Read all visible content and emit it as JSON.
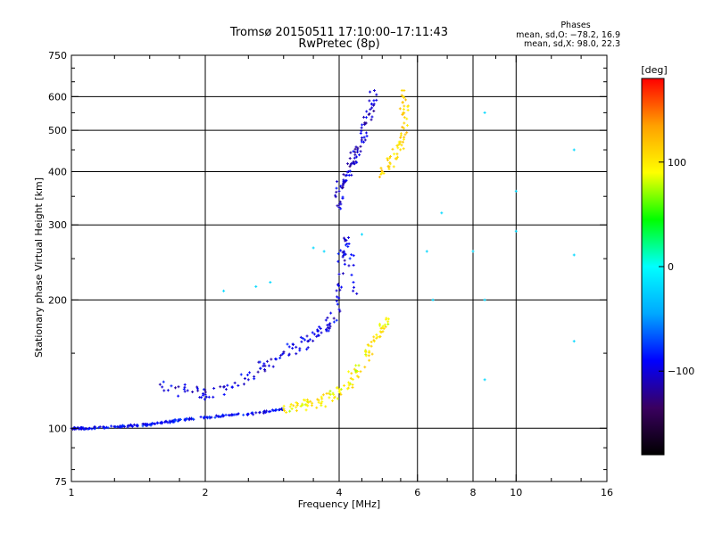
{
  "chart_data": {
    "type": "scatter",
    "title": "Tromsø 20150511 17:10:00–17:11:43",
    "subtitle": "RwPretec (8p)",
    "xlabel": "Frequency [MHz]",
    "ylabel": "Stationary phase Virtual Height [km]",
    "x_scale": "log",
    "y_scale": "log",
    "xlim": [
      1,
      16
    ],
    "ylim": [
      75,
      750
    ],
    "x_ticks": [
      1,
      2,
      4,
      6,
      8,
      10,
      16
    ],
    "x_minor_ticks": [
      1.25,
      1.5,
      1.75,
      2.5,
      3,
      3.5,
      4.5,
      5,
      5.5,
      7,
      9,
      12,
      14
    ],
    "x_gridlines": [
      2,
      4,
      6,
      8,
      10
    ],
    "y_ticks": [
      75,
      100,
      200,
      300,
      400,
      500,
      600,
      750
    ],
    "y_gridlines": [
      100,
      200,
      300,
      400,
      500,
      600
    ],
    "grid": true,
    "legend": {
      "title": "Phases",
      "lines": [
        "mean, sd,O: −78.2, 16.9",
        "mean, sd,X:  98.0, 22.3"
      ],
      "position": "top-right"
    },
    "colorbar": {
      "label": "[deg]",
      "range": [
        -180,
        180
      ],
      "ticks": [
        100,
        0,
        -100
      ],
      "colormap": "rainbow",
      "stops": [
        "#000000",
        "#3a0060",
        "#0000ff",
        "#00a8ff",
        "#00ffff",
        "#00ff00",
        "#ffff00",
        "#ffa000",
        "#ff0000"
      ]
    },
    "series": [
      {
        "trace": "O-mode low ground trace",
        "color_phase": -90,
        "points": [
          [
            1.0,
            100
          ],
          [
            1.05,
            100
          ],
          [
            1.1,
            100
          ],
          [
            1.2,
            100.5
          ],
          [
            1.3,
            101
          ],
          [
            1.4,
            101.5
          ],
          [
            1.5,
            102
          ],
          [
            1.6,
            103
          ],
          [
            1.7,
            104
          ],
          [
            1.8,
            105
          ],
          [
            2.0,
            106
          ],
          [
            2.2,
            107
          ],
          [
            2.5,
            108
          ],
          [
            2.8,
            109.5
          ],
          [
            3.0,
            111
          ]
        ]
      },
      {
        "trace": "X-mode low trace",
        "color_phase": 95,
        "points": [
          [
            3.0,
            111
          ],
          [
            3.2,
            112
          ],
          [
            3.4,
            113
          ],
          [
            3.6,
            115
          ],
          [
            3.8,
            118
          ],
          [
            4.0,
            122
          ],
          [
            4.2,
            128
          ],
          [
            4.4,
            136
          ],
          [
            4.6,
            148
          ],
          [
            4.8,
            160
          ],
          [
            5.0,
            172
          ],
          [
            5.1,
            180
          ]
        ]
      },
      {
        "trace": "O-mode scattered E-region",
        "color_phase": -100,
        "points": [
          [
            1.6,
            125
          ],
          [
            1.8,
            122
          ],
          [
            2.0,
            120
          ],
          [
            2.2,
            125
          ],
          [
            2.5,
            130
          ],
          [
            2.7,
            140
          ],
          [
            3.0,
            150
          ],
          [
            3.2,
            155
          ],
          [
            3.4,
            160
          ],
          [
            3.6,
            165
          ],
          [
            3.8,
            175
          ],
          [
            4.0,
            190
          ],
          [
            4.0,
            230
          ],
          [
            4.1,
            260
          ],
          [
            4.2,
            280
          ],
          [
            4.3,
            210
          ]
        ]
      },
      {
        "trace": "O-mode F-region",
        "color_phase": -105,
        "points": [
          [
            4.0,
            330
          ],
          [
            4.0,
            360
          ],
          [
            4.1,
            380
          ],
          [
            4.2,
            400
          ],
          [
            4.3,
            420
          ],
          [
            4.4,
            450
          ],
          [
            4.5,
            480
          ],
          [
            4.6,
            520
          ],
          [
            4.7,
            560
          ],
          [
            4.8,
            620
          ]
        ]
      },
      {
        "trace": "X-mode F-region",
        "color_phase": 110,
        "points": [
          [
            5.0,
            400
          ],
          [
            5.2,
            420
          ],
          [
            5.4,
            440
          ],
          [
            5.5,
            470
          ],
          [
            5.6,
            520
          ],
          [
            5.6,
            570
          ],
          [
            5.6,
            620
          ]
        ]
      },
      {
        "trace": "Sporadic high points",
        "color_phase": -20,
        "points": [
          [
            2.2,
            210
          ],
          [
            2.6,
            215
          ],
          [
            2.8,
            220
          ],
          [
            3.5,
            265
          ],
          [
            3.7,
            260
          ],
          [
            4.5,
            285
          ],
          [
            6.3,
            260
          ],
          [
            6.5,
            200
          ],
          [
            6.8,
            320
          ],
          [
            8.0,
            260
          ],
          [
            8.5,
            550
          ],
          [
            8.5,
            200
          ],
          [
            8.5,
            130
          ],
          [
            10.0,
            290
          ],
          [
            10.0,
            360
          ],
          [
            13.5,
            450
          ],
          [
            13.5,
            255
          ],
          [
            13.5,
            160
          ]
        ]
      }
    ]
  }
}
